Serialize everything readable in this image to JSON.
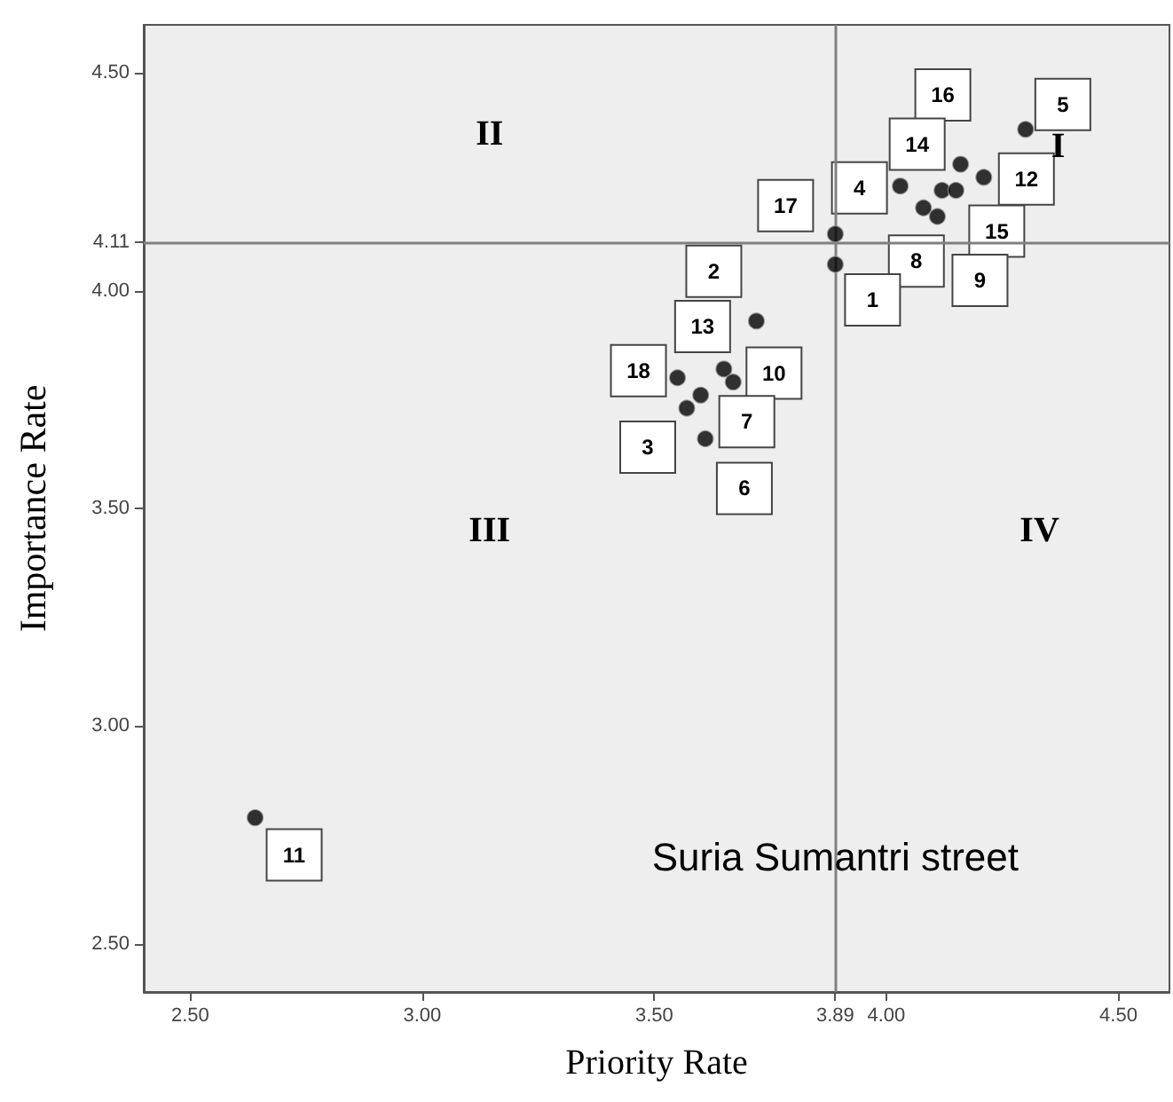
{
  "chart_data": {
    "type": "scatter",
    "xlabel": "Priority Rate",
    "ylabel": "Importance Rate",
    "marker": "circle",
    "series": [
      {
        "color": "#000000",
        "x": [
          2.64,
          4.3,
          4.16,
          4.21,
          4.03,
          4.12,
          4.15,
          4.08,
          4.11,
          3.89,
          3.89,
          3.72,
          3.55,
          3.65,
          3.67,
          3.6,
          3.57,
          3.61
        ],
        "values": [
          2.79,
          4.37,
          4.29,
          4.26,
          4.24,
          4.23,
          4.23,
          4.19,
          4.17,
          4.13,
          4.06,
          3.93,
          3.8,
          3.82,
          3.79,
          3.76,
          3.73,
          3.66
        ]
      }
    ],
    "xlim": [
      2.4,
      4.61
    ],
    "ylim": [
      2.39,
      4.61
    ],
    "xticks": [
      {
        "value": 2.5,
        "label": "2.50"
      },
      {
        "value": 3,
        "label": "3.00"
      },
      {
        "value": 3.5,
        "label": "3.50"
      },
      3.89,
      {
        "value": 4,
        "label": "4.00"
      },
      {
        "value": 4.5,
        "label": "4.50"
      }
    ],
    "yticks": [
      {
        "value": 2.5,
        "label": "2.50"
      },
      {
        "value": 3,
        "label": "3.00"
      },
      {
        "value": 3.5,
        "label": "3.50"
      },
      {
        "value": 4,
        "label": "4.00"
      },
      4.11,
      {
        "value": 4.5,
        "label": "4.50"
      }
    ],
    "ref_lines": [
      {
        "axis": "x",
        "value": 3.89,
        "color": "#808080"
      },
      {
        "axis": "y",
        "value": 4.11,
        "color": "#808080"
      }
    ],
    "annotations": [
      "II",
      "I",
      "III",
      "IV",
      "Suria Sumantri street",
      {
        "text": "11",
        "x": 2.64,
        "y": 2.79
      },
      {
        "text": "5",
        "x": 4.3,
        "y": 4.37
      },
      {
        "text": "16",
        "x": 4.16,
        "y": 4.29
      },
      {
        "text": "12",
        "x": 4.21,
        "y": 4.26
      },
      {
        "text": "4",
        "x": 4.03,
        "y": 4.24
      },
      {
        "text": "14",
        "x": 4.12,
        "y": 4.23
      },
      {
        "text": "15",
        "x": 4.15,
        "y": 4.23
      },
      {
        "text": "8",
        "x": 4.08,
        "y": 4.19
      },
      {
        "text": "9",
        "x": 4.11,
        "y": 4.17
      },
      {
        "text": "17",
        "x": 3.89,
        "y": 4.13
      },
      {
        "text": "1",
        "x": 3.89,
        "y": 4.06
      },
      {
        "text": "2",
        "x": 3.72,
        "y": 3.93
      },
      {
        "text": "13",
        "x": 3.65,
        "y": 3.82
      },
      {
        "text": "18",
        "x": 3.55,
        "y": 3.8
      },
      {
        "text": "10",
        "x": 3.67,
        "y": 3.79
      },
      {
        "text": "7",
        "x": 3.6,
        "y": 3.76
      },
      {
        "text": "3",
        "x": 3.57,
        "y": 3.73
      },
      {
        "text": "6",
        "x": 3.61,
        "y": 3.66
      }
    ]
  }
}
